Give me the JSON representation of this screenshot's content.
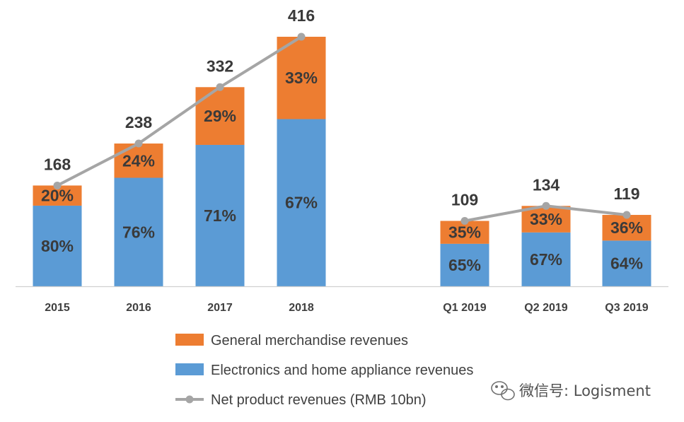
{
  "chart_data": {
    "type": "bar",
    "stacked": true,
    "categories": [
      "2015",
      "2016",
      "2017",
      "2018",
      "Q1 2019",
      "Q2 2019",
      "Q3 2019"
    ],
    "series": [
      {
        "name": "Electronics and home appliance revenues",
        "color": "#5b9bd5",
        "values": [
          80,
          76,
          71,
          67,
          65,
          67,
          64
        ],
        "labels": [
          "80%",
          "76%",
          "71%",
          "67%",
          "65%",
          "67%",
          "64%"
        ]
      },
      {
        "name": "General merchandise revenues",
        "color": "#ed7d31",
        "values": [
          20,
          24,
          29,
          33,
          35,
          33,
          36
        ],
        "labels": [
          "20%",
          "24%",
          "29%",
          "33%",
          "35%",
          "33%",
          "36%"
        ]
      }
    ],
    "line": {
      "name": "Net product revenues (RMB 10bn)",
      "color": "#a5a5a5",
      "values": [
        168,
        238,
        332,
        416,
        109,
        134,
        119
      ],
      "labels": [
        "168",
        "238",
        "332",
        "416",
        "109",
        "134",
        "119"
      ]
    },
    "legend_position": "bottom",
    "grid": false,
    "ylim": [
      0,
      416
    ]
  },
  "watermark": {
    "text": "微信号: Logisment",
    "icon": "wechat-icon"
  }
}
